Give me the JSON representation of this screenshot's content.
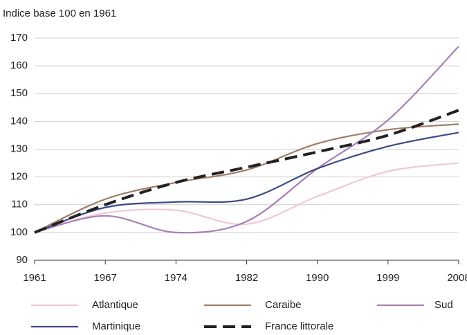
{
  "chart_data": {
    "type": "line",
    "y_axis_label": "Indice base 100 en 1961",
    "categories": [
      "1961",
      "1967",
      "1974",
      "1982",
      "1990",
      "1999",
      "2008"
    ],
    "series": [
      {
        "name": "Atlantique",
        "color": "#f2c6d8",
        "values": [
          100,
          107,
          108,
          103,
          113,
          122,
          125
        ]
      },
      {
        "name": "Caraibe",
        "color": "#a07c64",
        "values": [
          100,
          112,
          118,
          122.5,
          132,
          137,
          139
        ]
      },
      {
        "name": "Sud",
        "color": "#a77fb7",
        "values": [
          100,
          106,
          100,
          104,
          123,
          140.5,
          167
        ]
      },
      {
        "name": "Martinique",
        "color": "#3c4a86",
        "values": [
          100,
          109,
          111,
          112,
          123,
          131,
          136
        ]
      },
      {
        "name": "France littorale",
        "color": "#222222",
        "line_style": "dashed",
        "values": [
          100,
          110,
          118,
          123.5,
          129,
          135,
          144
        ]
      }
    ],
    "ylim": [
      90,
      170
    ],
    "yticks": [
      90,
      100,
      110,
      120,
      130,
      140,
      150,
      160,
      170
    ],
    "grid": true
  }
}
